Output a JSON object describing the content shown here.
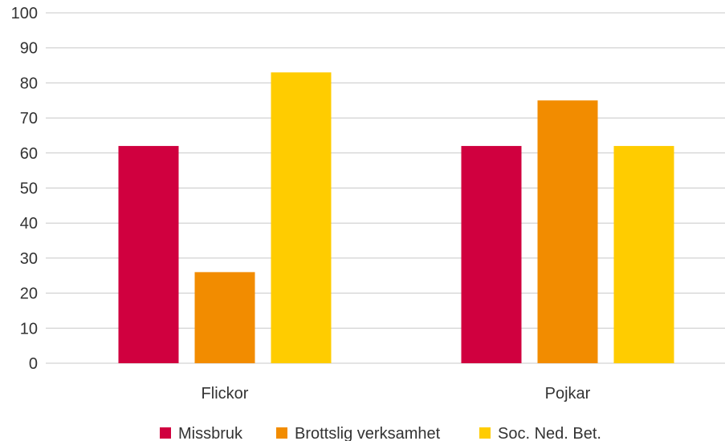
{
  "chart_data": {
    "type": "bar",
    "categories": [
      "Flickor",
      "Pojkar"
    ],
    "series": [
      {
        "name": "Missbruk",
        "values": [
          62,
          62
        ],
        "color": "#d0003f"
      },
      {
        "name": "Brottslig verksamhet",
        "values": [
          26,
          75
        ],
        "color": "#f28c00"
      },
      {
        "name": "Soc. Ned. Bet.",
        "values": [
          83,
          62
        ],
        "color": "#ffcc00"
      }
    ],
    "yticks": [
      "0",
      "10",
      "20",
      "30",
      "40",
      "50",
      "60",
      "70",
      "80",
      "90",
      "100"
    ],
    "ylim": [
      0,
      100
    ],
    "grid": true,
    "legend": "bottom",
    "title": "",
    "xlabel": "",
    "ylabel": ""
  }
}
